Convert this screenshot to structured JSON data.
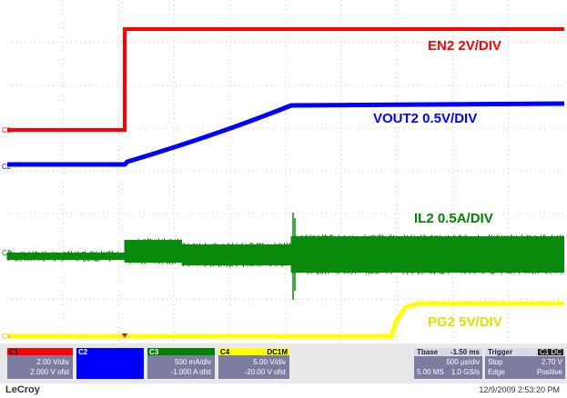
{
  "traces": [
    {
      "marker": "C1",
      "label": "EN2 2V/DIV"
    },
    {
      "marker": "C2",
      "label": "VOUT2 0.5V/DIV"
    },
    {
      "marker": "C3",
      "label": "IL2 0.5A/DIV"
    },
    {
      "marker": "C4",
      "label": "PG2 5V/DIV"
    }
  ],
  "channels": [
    {
      "name": "C1",
      "scale": "2.00 V/div",
      "offset": "2.000 V ofst"
    },
    {
      "name": "C2"
    },
    {
      "name": "C3",
      "scale": "500 mA/div",
      "offset": "-1.000 A ofst"
    },
    {
      "name": "C4",
      "coupling": "DC1M",
      "scale": "5.00 V/div",
      "offset": "-20.00 V ofst"
    }
  ],
  "timebase": {
    "title": "Tbase",
    "delay": "-1.50 ms",
    "scale": "500 µs/div",
    "samples": "5.00 MS",
    "rate": "1.0 GS/s"
  },
  "trigger": {
    "title": "Trigger",
    "source": "C1 DC",
    "mode": "Stop",
    "level": "2.70 V",
    "type": "Edge",
    "slope": "Positive"
  },
  "brand": "LeCroy",
  "timestamp": "12/9/2009 2:53:20 PM"
}
